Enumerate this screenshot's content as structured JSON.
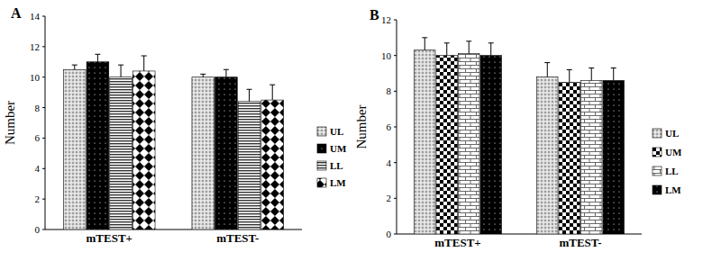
{
  "chart_data": [
    {
      "type": "bar",
      "title": "A",
      "y_label": "Number",
      "categories": [
        "mTEST+",
        "mTEST-"
      ],
      "ylim": [
        0,
        14
      ],
      "yticks": [
        0,
        2,
        4,
        6,
        8,
        10,
        12,
        14
      ],
      "grid": false,
      "legend": "right",
      "series": [
        {
          "name": "UL",
          "color": "#555555",
          "values": [
            10.5,
            10.0
          ],
          "errors": [
            0.3,
            0.2
          ]
        },
        {
          "name": "UM",
          "color": "#000000",
          "values": [
            11.0,
            10.0
          ],
          "errors": [
            0.5,
            0.5
          ]
        },
        {
          "name": "LL",
          "color": "#333333",
          "values": [
            10.0,
            8.4
          ],
          "errors": [
            0.8,
            0.8
          ]
        },
        {
          "name": "LM",
          "color": "#000000",
          "values": [
            10.4,
            8.5
          ],
          "errors": [
            1.0,
            1.0
          ]
        }
      ]
    },
    {
      "type": "bar",
      "title": "B",
      "y_label": "Number",
      "categories": [
        "mTEST+",
        "mTEST-"
      ],
      "ylim": [
        0,
        12
      ],
      "yticks": [
        0,
        2,
        4,
        6,
        8,
        10,
        12
      ],
      "grid": false,
      "legend": "right",
      "series": [
        {
          "name": "UL",
          "color": "#555555",
          "values": [
            10.3,
            8.8
          ],
          "errors": [
            0.7,
            0.8
          ]
        },
        {
          "name": "UM",
          "color": "#000000",
          "values": [
            10.0,
            8.5
          ],
          "errors": [
            0.7,
            0.7
          ]
        },
        {
          "name": "LL",
          "color": "#444444",
          "values": [
            10.1,
            8.6
          ],
          "errors": [
            0.7,
            0.7
          ]
        },
        {
          "name": "LM",
          "color": "#000000",
          "values": [
            10.0,
            8.6
          ],
          "errors": [
            0.7,
            0.7
          ]
        }
      ]
    }
  ]
}
